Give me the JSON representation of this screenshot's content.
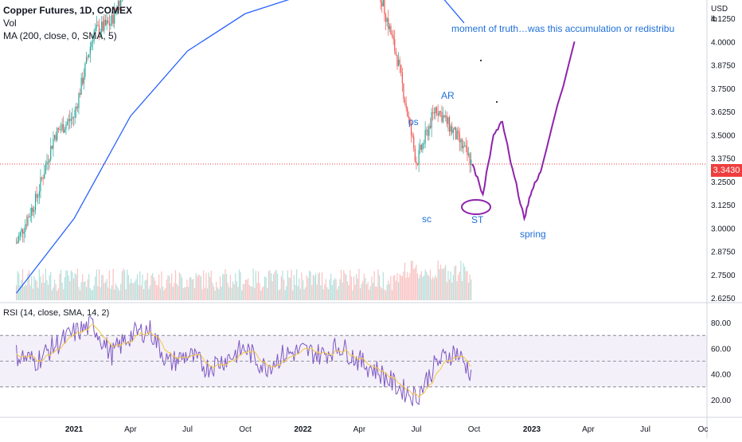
{
  "header": {
    "symbol_line": "Copper Futures, 1D, COMEX",
    "volume_label": "Vol",
    "ma_label": "MA (200, close, 0, SMA, 5)",
    "rsi_label": "RSI (14, close, SMA, 14, 2)"
  },
  "price_axis": {
    "currency": "USD",
    "unit": "lb",
    "ticks": [
      "4.1250",
      "4.0000",
      "3.8750",
      "3.7500",
      "3.6250",
      "3.5000",
      "3.3750",
      "3.2500",
      "3.1250",
      "3.0000",
      "2.8750",
      "2.7500",
      "2.6250"
    ],
    "current_price": "3.3430"
  },
  "rsi_axis": {
    "ticks": [
      "80.00",
      "60.00",
      "40.00",
      "20.00"
    ]
  },
  "time_axis": {
    "ticks": [
      "2021",
      "Apr",
      "Jul",
      "Oct",
      "2022",
      "Apr",
      "Jul",
      "Oct",
      "2023",
      "Apr",
      "Jul",
      "Oc"
    ]
  },
  "annotations": {
    "moment": "moment of truth…was this accumulation or redistribu",
    "ps": "ps",
    "ar": "AR",
    "sc": "sc",
    "st": "ST",
    "spring": "spring"
  },
  "colors": {
    "up": "#26a69a",
    "down": "#ef5350",
    "ma": "#2962ff",
    "rsi_line": "#7e57c2",
    "rsi_ma": "#f5c542",
    "drawing": "#8e24aa",
    "annotation": "#1e6fd9",
    "current_price": "#ef3d3d"
  },
  "chart_data": [
    {
      "type": "candlestick",
      "title": "Copper Futures, 1D, COMEX",
      "ylim": [
        2.625,
        4.125
      ],
      "x_ticks": [
        "2021",
        "Apr",
        "Jul",
        "Oct",
        "2022",
        "Apr",
        "Jul",
        "Oct",
        "2023",
        "Apr",
        "Jul",
        "Oc"
      ],
      "close_series": {
        "dates": [
          "2020-10-01",
          "2020-11-01",
          "2020-12-01",
          "2021-01-01",
          "2021-02-01",
          "2021-03-01",
          "2021-04-01",
          "2021-05-01",
          "2021-06-01",
          "2021-07-01",
          "2021-08-01",
          "2021-09-01",
          "2021-10-01",
          "2021-11-01",
          "2021-12-01",
          "2022-01-01",
          "2022-02-01",
          "2022-03-01",
          "2022-04-01",
          "2022-05-01",
          "2022-06-01",
          "2022-07-01",
          "2022-08-01",
          "2022-09-01",
          "2022-09-28"
        ],
        "values": [
          2.92,
          3.15,
          3.5,
          3.6,
          4.05,
          4.1,
          4.4,
          4.6,
          4.3,
          4.4,
          4.3,
          4.3,
          4.5,
          4.3,
          4.4,
          4.5,
          4.5,
          4.7,
          4.6,
          4.3,
          3.9,
          3.35,
          3.65,
          3.5,
          3.343
        ]
      },
      "moving_average": {
        "name": "MA (200, close, 0, SMA, 5)",
        "dates": [
          "2020-10-01",
          "2021-01-01",
          "2021-04-01",
          "2021-07-01",
          "2021-10-01",
          "2022-01-01",
          "2022-04-01",
          "2022-07-01",
          "2022-09-15"
        ],
        "values": [
          2.65,
          3.05,
          3.6,
          3.95,
          4.15,
          4.25,
          4.35,
          4.4,
          4.1
        ]
      },
      "current_price": 3.343,
      "projection": {
        "dates": [
          "2022-09-28",
          "2022-10-15",
          "2022-11-01",
          "2022-11-15",
          "2022-12-01",
          "2022-12-20",
          "2023-01-01",
          "2023-01-15",
          "2023-03-10"
        ],
        "values": [
          3.343,
          3.18,
          3.5,
          3.57,
          3.32,
          3.05,
          3.2,
          3.3,
          4.0
        ]
      }
    },
    {
      "type": "line",
      "title": "RSI (14, close, SMA, 14, 2)",
      "ylim": [
        10,
        90
      ],
      "bands": [
        30,
        50,
        70
      ],
      "series": [
        {
          "name": "RSI",
          "dates": [
            "2020-10-01",
            "2020-11-01",
            "2020-12-01",
            "2021-01-01",
            "2021-02-01",
            "2021-03-01",
            "2021-04-01",
            "2021-05-01",
            "2021-06-01",
            "2021-07-01",
            "2021-08-01",
            "2021-09-01",
            "2021-10-01",
            "2021-11-01",
            "2021-12-01",
            "2022-01-01",
            "2022-02-01",
            "2022-03-01",
            "2022-04-01",
            "2022-05-01",
            "2022-06-01",
            "2022-07-01",
            "2022-08-01",
            "2022-09-01",
            "2022-09-28"
          ],
          "values": [
            55,
            50,
            62,
            72,
            78,
            55,
            70,
            75,
            48,
            55,
            45,
            52,
            60,
            45,
            55,
            58,
            55,
            62,
            50,
            42,
            30,
            22,
            48,
            58,
            40
          ]
        }
      ]
    }
  ]
}
